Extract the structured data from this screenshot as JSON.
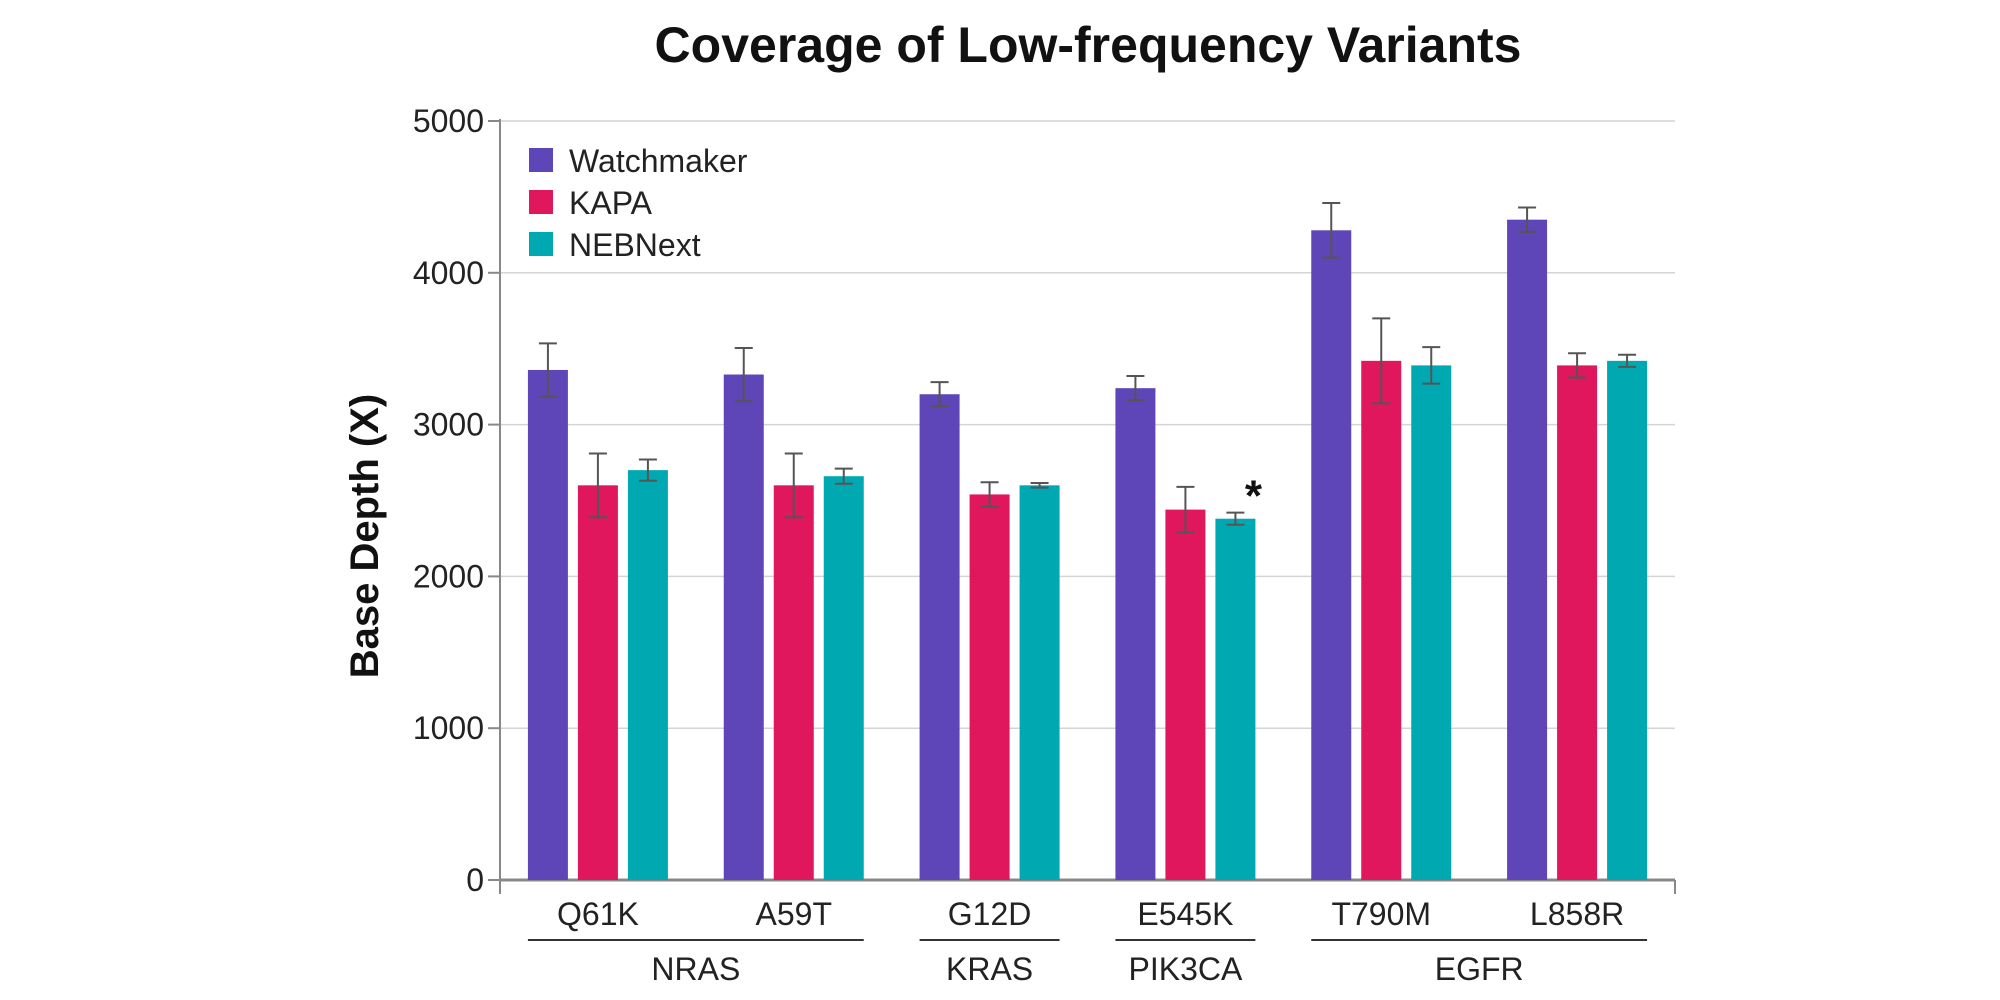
{
  "chart_data": {
    "type": "bar",
    "title": "Coverage of Low-frequency Variants",
    "xlabel": "",
    "ylabel": "Base Depth (X)",
    "ylim": [
      0,
      5000
    ],
    "yticks": [
      0,
      1000,
      2000,
      3000,
      4000,
      5000
    ],
    "grid": true,
    "legend_position": "top-left",
    "categories": [
      "Q61K",
      "A59T",
      "G12D",
      "E545K",
      "T790M",
      "L858R"
    ],
    "groups": [
      {
        "label": "NRAS",
        "categories": [
          "Q61K",
          "A59T"
        ]
      },
      {
        "label": "KRAS",
        "categories": [
          "G12D"
        ]
      },
      {
        "label": "PIK3CA",
        "categories": [
          "E545K"
        ]
      },
      {
        "label": "EGFR",
        "categories": [
          "T790M",
          "L858R"
        ]
      }
    ],
    "series": [
      {
        "name": "Watchmaker",
        "color": "#5e46b8",
        "values": [
          3360,
          3330,
          3200,
          3240,
          4280,
          4350
        ],
        "errors": [
          175,
          175,
          80,
          80,
          180,
          80
        ]
      },
      {
        "name": "KAPA",
        "color": "#e0175c",
        "values": [
          2600,
          2600,
          2540,
          2440,
          3420,
          3390
        ],
        "errors": [
          210,
          210,
          80,
          150,
          280,
          80
        ]
      },
      {
        "name": "NEBNext",
        "color": "#00a8b2",
        "values": [
          2700,
          2660,
          2600,
          2380,
          3390,
          3420
        ],
        "errors": [
          70,
          50,
          15,
          40,
          120,
          40
        ]
      }
    ],
    "annotations": [
      {
        "text": "*",
        "category": "E545K",
        "series": "NEBNext"
      }
    ]
  }
}
